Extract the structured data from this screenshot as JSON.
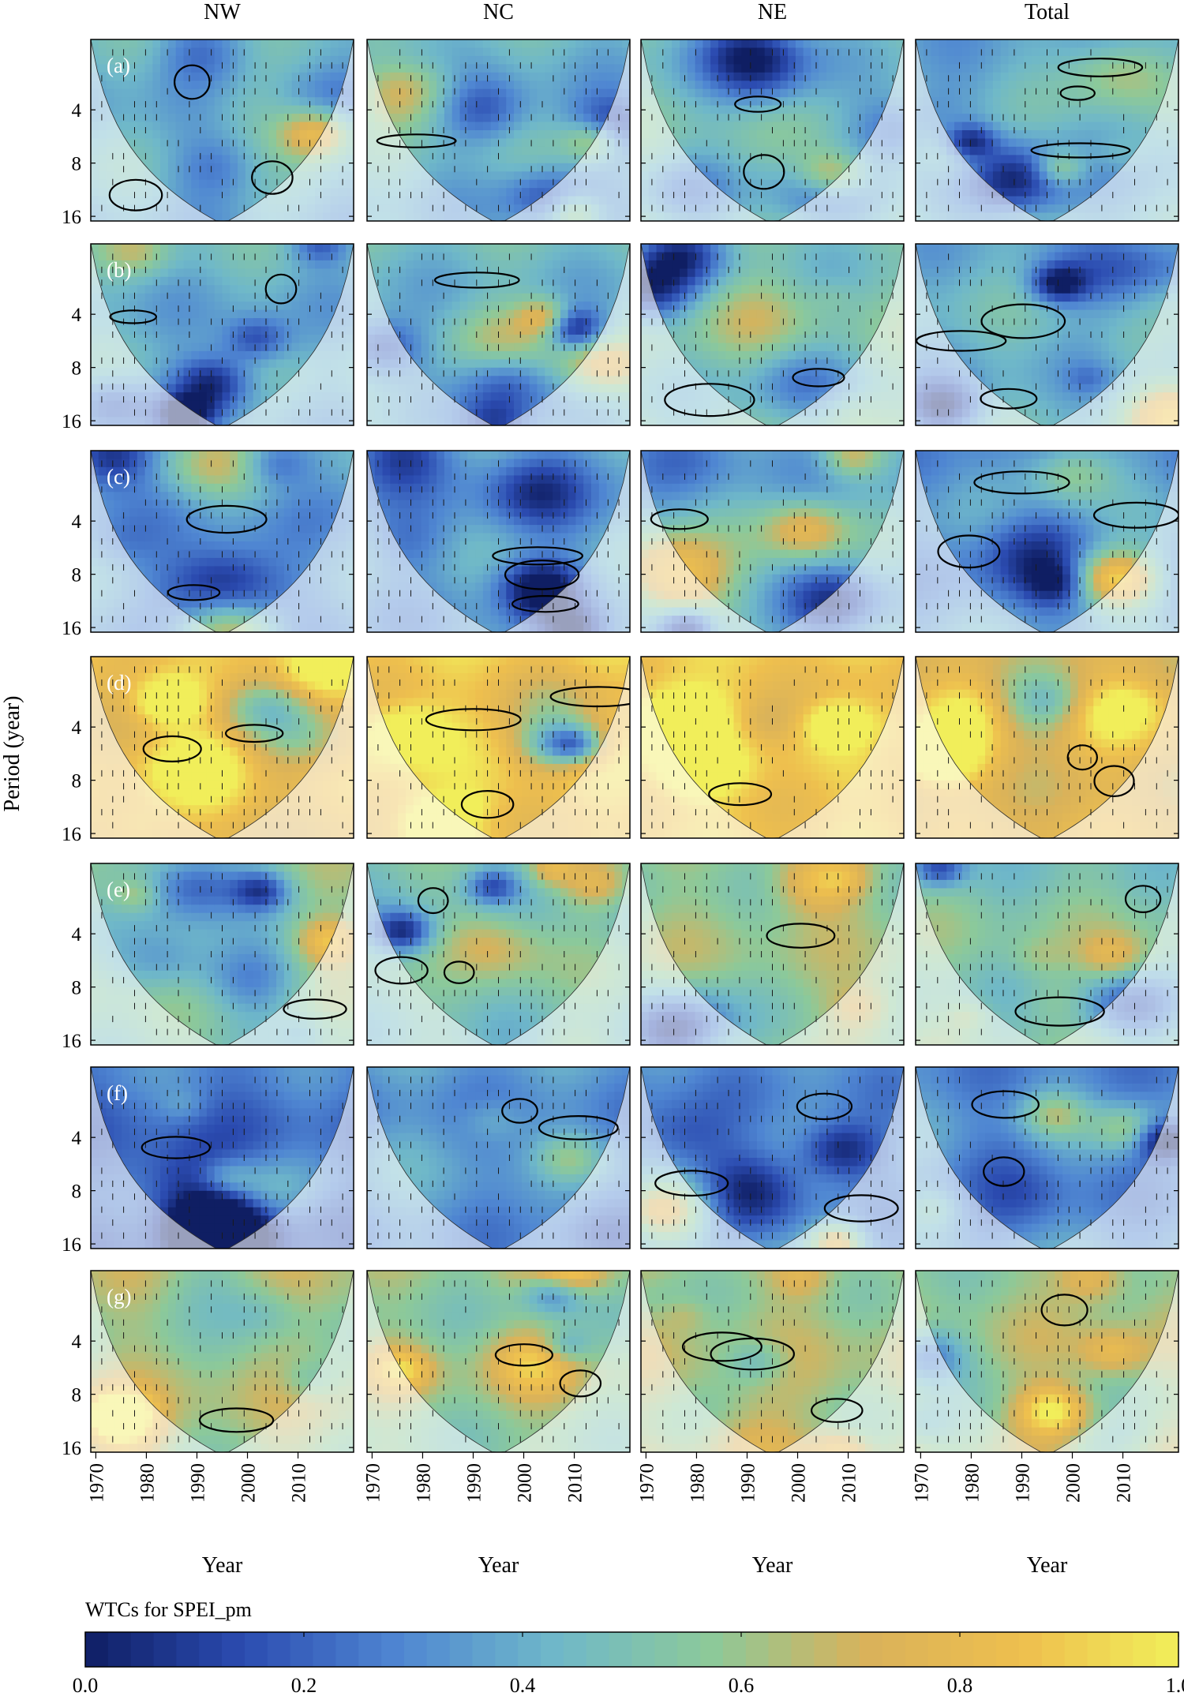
{
  "chart_data": {
    "type": "heatmap",
    "description_kind": "wavelet coherence grid (7 rows x 4 columns)",
    "columns": [
      "NW",
      "NC",
      "NE",
      "Total"
    ],
    "rows": [
      "(a)",
      "(b)",
      "(c)",
      "(d)",
      "(e)",
      "(f)",
      "(g)"
    ],
    "x": {
      "label": "Year",
      "ticks": [
        1970,
        1980,
        1990,
        2000,
        2010
      ],
      "range": [
        1969,
        2021
      ]
    },
    "y": {
      "label": "Period (year)",
      "ticks": [
        4,
        8,
        16
      ],
      "scale": "log2",
      "reversed": true,
      "range": [
        1.6,
        17
      ]
    },
    "colorbar": {
      "title": "WTCs for SPEI_pm",
      "ticks": [
        0.0,
        0.2,
        0.4,
        0.6,
        0.8,
        1.0
      ],
      "tick_labels": [
        "0.0",
        "0.2",
        "0.4",
        "0.6",
        "0.8",
        "1.0"
      ],
      "range": [
        0,
        1
      ],
      "colors": [
        "#0f1e63",
        "#2b4bb0",
        "#4f86d2",
        "#6fb8c9",
        "#8cc99a",
        "#d9b25a",
        "#eebf4e",
        "#f1ee5a"
      ]
    },
    "cone_of_influence": true,
    "arrows_shown": true,
    "panel_character": {
      "(a)": "low-moderate coherence, isolated significant islands near 8-yr",
      "(b)": "low-moderate coherence, significant band around 8-yr",
      "(c)": "mostly low coherence",
      "(d)": "high coherence dominant at 4-16 yr",
      "(e)": "moderate coherence, significant regions at 4-10 yr",
      "(f)": "low coherence",
      "(g)": "moderate-high coherence at 3-8 yr"
    },
    "panel_mean_coherence": [
      [
        0.4,
        0.42,
        0.48,
        0.4
      ],
      [
        0.42,
        0.45,
        0.5,
        0.42
      ],
      [
        0.35,
        0.36,
        0.4,
        0.34
      ],
      [
        0.8,
        0.88,
        0.9,
        0.78
      ],
      [
        0.55,
        0.5,
        0.58,
        0.52
      ],
      [
        0.25,
        0.33,
        0.33,
        0.32
      ],
      [
        0.62,
        0.58,
        0.62,
        0.6
      ]
    ]
  }
}
